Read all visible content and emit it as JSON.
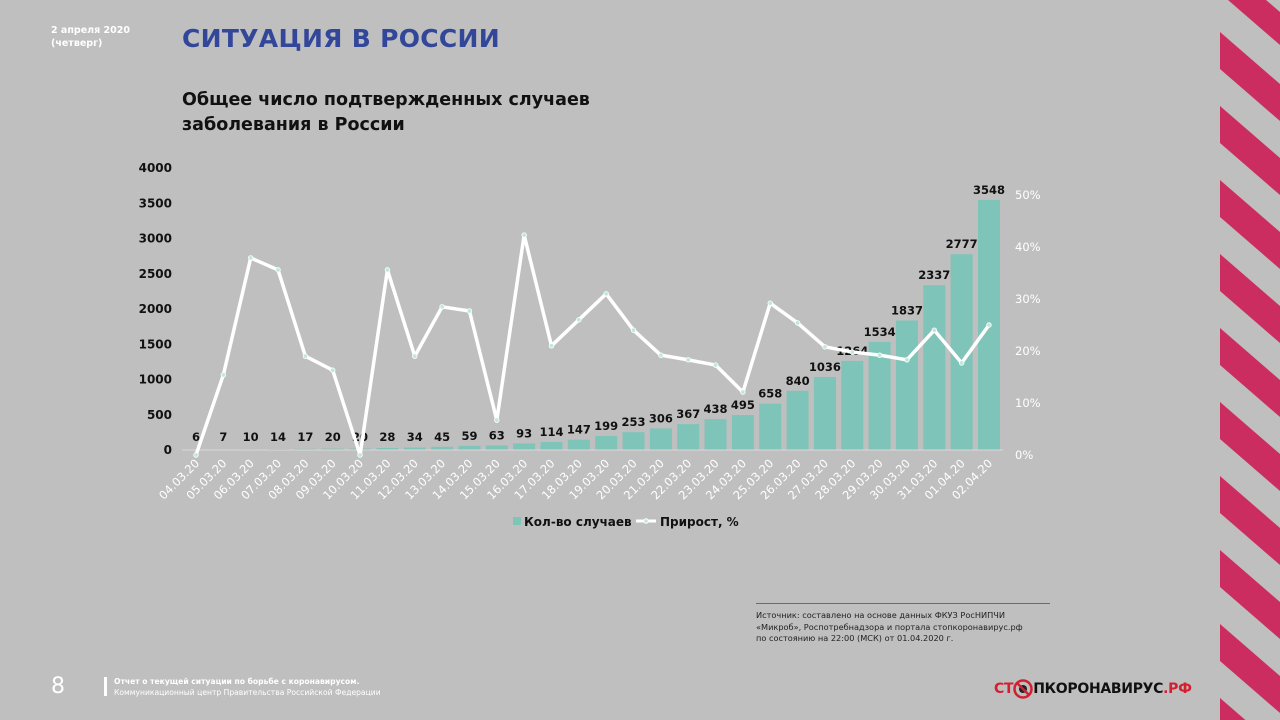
{
  "header": {
    "date_line1": "2 апреля 2020",
    "date_line2": "(четверг)",
    "title": "СИТУАЦИЯ В РОССИИ",
    "subtitle_line1": "Общее число подтвержденных случаев",
    "subtitle_line2": "заболевания в России"
  },
  "colors": {
    "title": "#33479a",
    "bars": "#7fc4b8",
    "line": "#ffffff",
    "stripes": "#cc2d60",
    "background": "#bfbfbf"
  },
  "chart_data": {
    "type": "bar+line",
    "categories": [
      "04.03.20",
      "05.03.20",
      "06.03.20",
      "07.03.20",
      "08.03.20",
      "09.03.20",
      "10.03.20",
      "11.03.20",
      "12.03.20",
      "13.03.20",
      "14.03.20",
      "15.03.20",
      "16.03.20",
      "17.03.20",
      "18.03.20",
      "19.03.20",
      "20.03.20",
      "21.03.20",
      "22.03.20",
      "23.03.20",
      "24.03.20",
      "25.03.20",
      "26.03.20",
      "27.03.20",
      "28.03.20",
      "29.03.20",
      "30.03.20",
      "31.03.20",
      "01.04.20",
      "02.04.20"
    ],
    "series": [
      {
        "name": "Кол-во случаев",
        "type": "bar",
        "axis": "left",
        "values": [
          6,
          7,
          10,
          14,
          17,
          20,
          20,
          28,
          34,
          45,
          59,
          63,
          93,
          114,
          147,
          199,
          253,
          306,
          367,
          438,
          495,
          658,
          840,
          1036,
          1264,
          1534,
          1837,
          2337,
          2777,
          3548
        ]
      },
      {
        "name": "Прирост, %",
        "type": "line",
        "axis": "right",
        "values": [
          0,
          15.4,
          37.9,
          35.6,
          19,
          16.3,
          0,
          35.6,
          19,
          28.5,
          27.7,
          6.7,
          42.3,
          21,
          26,
          31,
          24,
          19.2,
          18.3,
          17.3,
          12.1,
          29.2,
          25.4,
          20.8,
          19.8,
          19.2,
          18.3,
          24,
          17.7,
          25
        ]
      }
    ],
    "left_axis": {
      "ylim": [
        0,
        4000
      ],
      "ticks": [
        "0",
        "500",
        "1000",
        "1500",
        "2000",
        "2500",
        "3000",
        "3500",
        "4000"
      ]
    },
    "right_axis": {
      "ylim": [
        0,
        50
      ],
      "ticks": [
        "0%",
        "10%",
        "20%",
        "30%",
        "40%",
        "50%"
      ]
    },
    "grid": false,
    "legend": "bottom"
  },
  "source": {
    "line1": "Источник: составлено на основе данных ФКУЗ РосНИПЧИ",
    "line2": "«Микроб», Роспотребнадзора и портала стопкоронавирус.рф",
    "line3": "по состоянию на 22:00 (МСК) от 01.04.2020 г."
  },
  "footer": {
    "page_number": "8",
    "line1": "Отчет о текущей ситуации по борьбе с коронавирусом.",
    "line2": "Коммуникационный центр Правительства Российской Федерации",
    "logo_part1": "СТ",
    "logo_part2": "ПКОРОНАВИРУС",
    "logo_part3": ".РФ"
  }
}
